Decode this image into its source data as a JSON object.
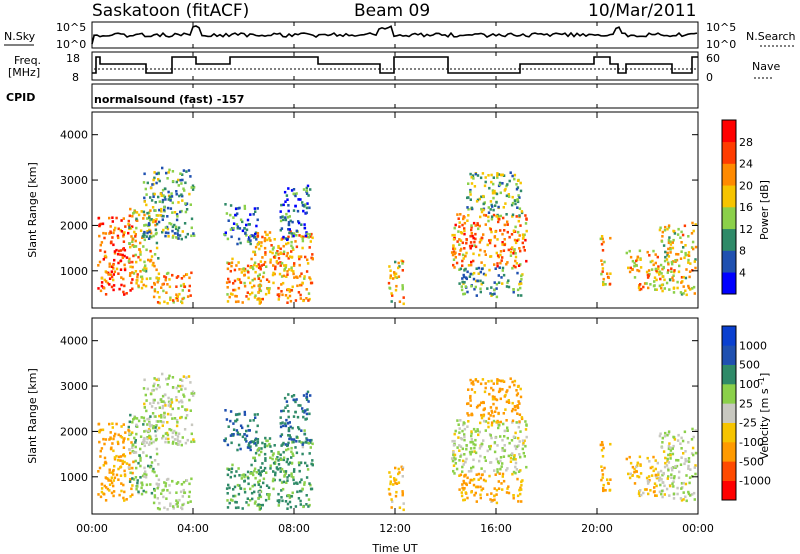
{
  "header": {
    "station": "Saskatoon (fitACF)",
    "beam": "Beam 09",
    "date": "10/Mar/2011"
  },
  "status_panels": {
    "nsky_label": "N.Sky",
    "nsearch_label": "N.Search",
    "freq_label_line1": "Freq.",
    "freq_label_line2": "[MHz]",
    "nave_label": "Nave",
    "cpid_label": "CPID",
    "cpid_value": "normalsound (fast) -157",
    "noise_ticks_left": [
      "10^5",
      "10^0"
    ],
    "noise_ticks_right": [
      "10^5",
      "10^0"
    ],
    "freq_ticks": [
      "18",
      "8"
    ],
    "nave_ticks": [
      "60",
      "0"
    ]
  },
  "chart_data": [
    {
      "type": "heatmap",
      "quantity": "Power",
      "colorbar_label": "Power [dB]",
      "colorbar_ticks": [
        "4",
        "8",
        "12",
        "16",
        "20",
        "24",
        "28"
      ],
      "colorbar_range": [
        0,
        32
      ],
      "colors": [
        "#0000ff",
        "#1f50b0",
        "#2f8a68",
        "#8bd04a",
        "#f6c400",
        "#ff8a00",
        "#ff3c00",
        "#ff0000"
      ],
      "xlabel": "",
      "ylabel": "Slant Range [km]",
      "xlim_hours": [
        0,
        24
      ],
      "ylim": [
        180,
        4500
      ],
      "yticks": [
        1000,
        2000,
        3000,
        4000
      ],
      "legend_position": "right",
      "grid": false
    },
    {
      "type": "heatmap",
      "quantity": "Velocity",
      "colorbar_label": "Velocity [m s^-1]",
      "colorbar_ticks": [
        "-1000",
        "-500",
        "-100",
        "-25",
        "25",
        "100",
        "500",
        "1000"
      ],
      "colorbar_range": [
        -1500,
        1500
      ],
      "colors": [
        "#ff0000",
        "#ff4a00",
        "#ff9a00",
        "#f6c400",
        "#c8c8c0",
        "#8bd04a",
        "#2f8a68",
        "#1f50b0",
        "#0a40d0"
      ],
      "xlabel": "Time UT",
      "ylabel": "Slant Range [km]",
      "xlim_hours": [
        0,
        24
      ],
      "ylim": [
        180,
        4500
      ],
      "yticks": [
        1000,
        2000,
        3000,
        4000
      ],
      "xticks": [
        "00:00",
        "04:00",
        "08:00",
        "12:00",
        "16:00",
        "20:00",
        "00:00"
      ],
      "legend_position": "right",
      "grid": false
    }
  ],
  "scatter_regions": [
    {
      "t0": 0.2,
      "t1": 1.6,
      "r0": 500,
      "r1": 2200,
      "pow": 26,
      "vel": -150
    },
    {
      "t0": 1.4,
      "t1": 2.6,
      "r0": 600,
      "r1": 2400,
      "pow": 18,
      "vel": 60
    },
    {
      "t0": 2.4,
      "t1": 3.9,
      "r0": 280,
      "r1": 1000,
      "pow": 21,
      "vel": 40
    },
    {
      "t0": 2.0,
      "t1": 4.0,
      "r0": 1700,
      "r1": 3300,
      "pow": 11,
      "vel": 20
    },
    {
      "t0": 5.3,
      "t1": 6.7,
      "r0": 300,
      "r1": 1300,
      "pow": 21,
      "vel": 140
    },
    {
      "t0": 5.2,
      "t1": 6.6,
      "r0": 1600,
      "r1": 2500,
      "pow": 8,
      "vel": 500
    },
    {
      "t0": 6.3,
      "t1": 8.7,
      "r0": 300,
      "r1": 1900,
      "pow": 20,
      "vel": 110
    },
    {
      "t0": 7.4,
      "t1": 8.6,
      "r0": 1700,
      "r1": 2900,
      "pow": 8,
      "vel": 450
    },
    {
      "t0": 11.7,
      "t1": 12.3,
      "r0": 300,
      "r1": 1300,
      "pow": 18,
      "vel": -90
    },
    {
      "t0": 14.2,
      "t1": 17.2,
      "r0": 1100,
      "r1": 2300,
      "pow": 22,
      "vel": 20
    },
    {
      "t0": 14.5,
      "t1": 17.0,
      "r0": 450,
      "r1": 1100,
      "pow": 11,
      "vel": -120
    },
    {
      "t0": 14.8,
      "t1": 17.0,
      "r0": 2200,
      "r1": 3200,
      "pow": 13,
      "vel": -200
    },
    {
      "t0": 20.1,
      "t1": 20.5,
      "r0": 700,
      "r1": 1800,
      "pow": 19,
      "vel": -150
    },
    {
      "t0": 21.1,
      "t1": 22.4,
      "r0": 600,
      "r1": 1500,
      "pow": 20,
      "vel": -60
    },
    {
      "t0": 22.4,
      "t1": 24.0,
      "r0": 500,
      "r1": 2100,
      "pow": 18,
      "vel": 20
    }
  ]
}
